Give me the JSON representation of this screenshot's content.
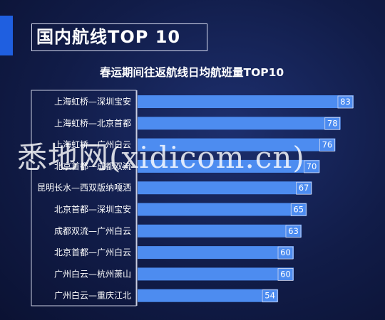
{
  "header": {
    "title": "国内航线TOP 10"
  },
  "watermark": "悉地网(xidicom.cn)",
  "colors": {
    "bar": "#4d8cf0",
    "background": "#111c48",
    "accent": "#1f5fe0"
  },
  "chart_data": {
    "type": "bar",
    "orientation": "horizontal",
    "title": "春运期间往返航线日均航班量TOP10",
    "categories": [
      "上海虹桥—深圳宝安",
      "上海虹桥—北京首都",
      "上海虹桥—广州白云",
      "北京首都—成都双流",
      "昆明长水—西双版纳嘎洒",
      "北京首都—深圳宝安",
      "成都双流—广州白云",
      "北京首都—广州白云",
      "广州白云—杭州萧山",
      "广州白云—重庆江北"
    ],
    "values": [
      83,
      78,
      76,
      70,
      67,
      65,
      63,
      60,
      60,
      54
    ],
    "xlim": [
      0,
      90
    ],
    "grid": false,
    "legend": "none"
  }
}
